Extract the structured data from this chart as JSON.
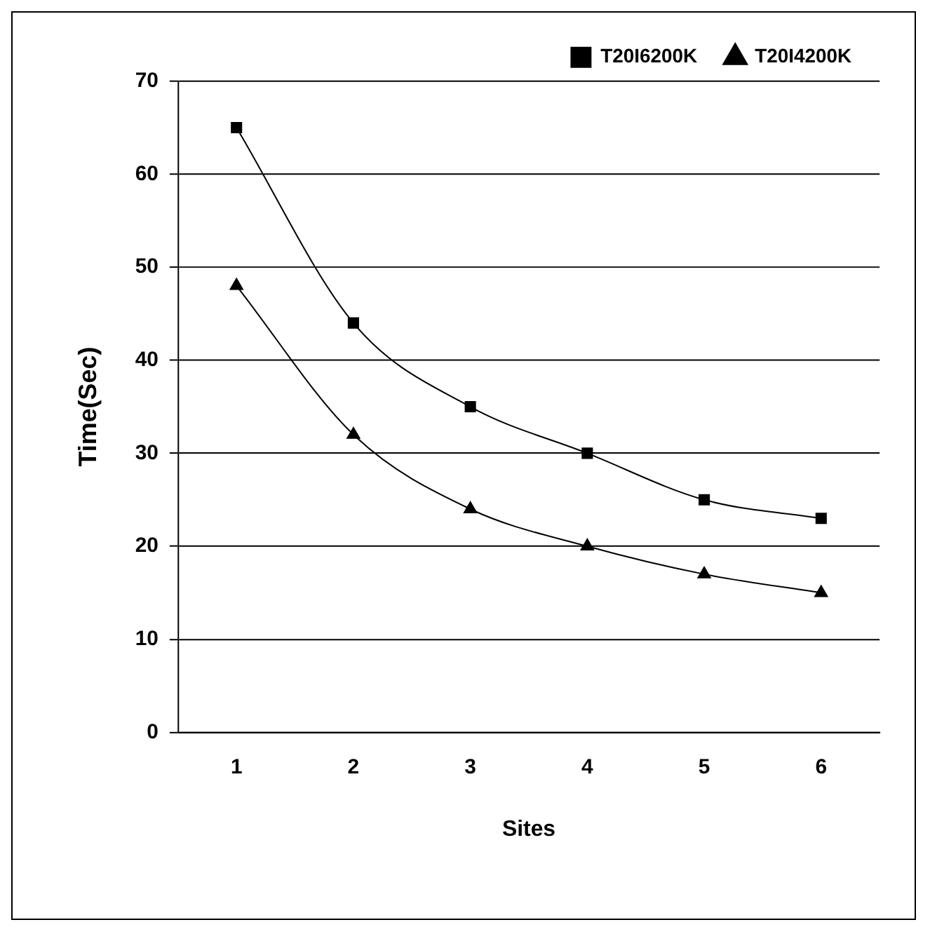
{
  "chart_data": {
    "type": "line",
    "xlabel": "Sites",
    "ylabel": "Time(Sec)",
    "categories": [
      "1",
      "2",
      "3",
      "4",
      "5",
      "6"
    ],
    "series": [
      {
        "name": "T20I6200K",
        "color": "#000000",
        "marker": "square",
        "values": [
          65,
          44,
          35,
          30,
          25,
          23
        ]
      },
      {
        "name": "T20I4200K",
        "color": "#000000",
        "marker": "triangle",
        "values": [
          48,
          32,
          24,
          20,
          17,
          15
        ]
      }
    ],
    "ylim": [
      0,
      70
    ],
    "yticks": [
      0,
      10,
      20,
      30,
      40,
      50,
      60,
      70
    ],
    "grid": "y",
    "legend": "top right",
    "line_style": "solid"
  }
}
